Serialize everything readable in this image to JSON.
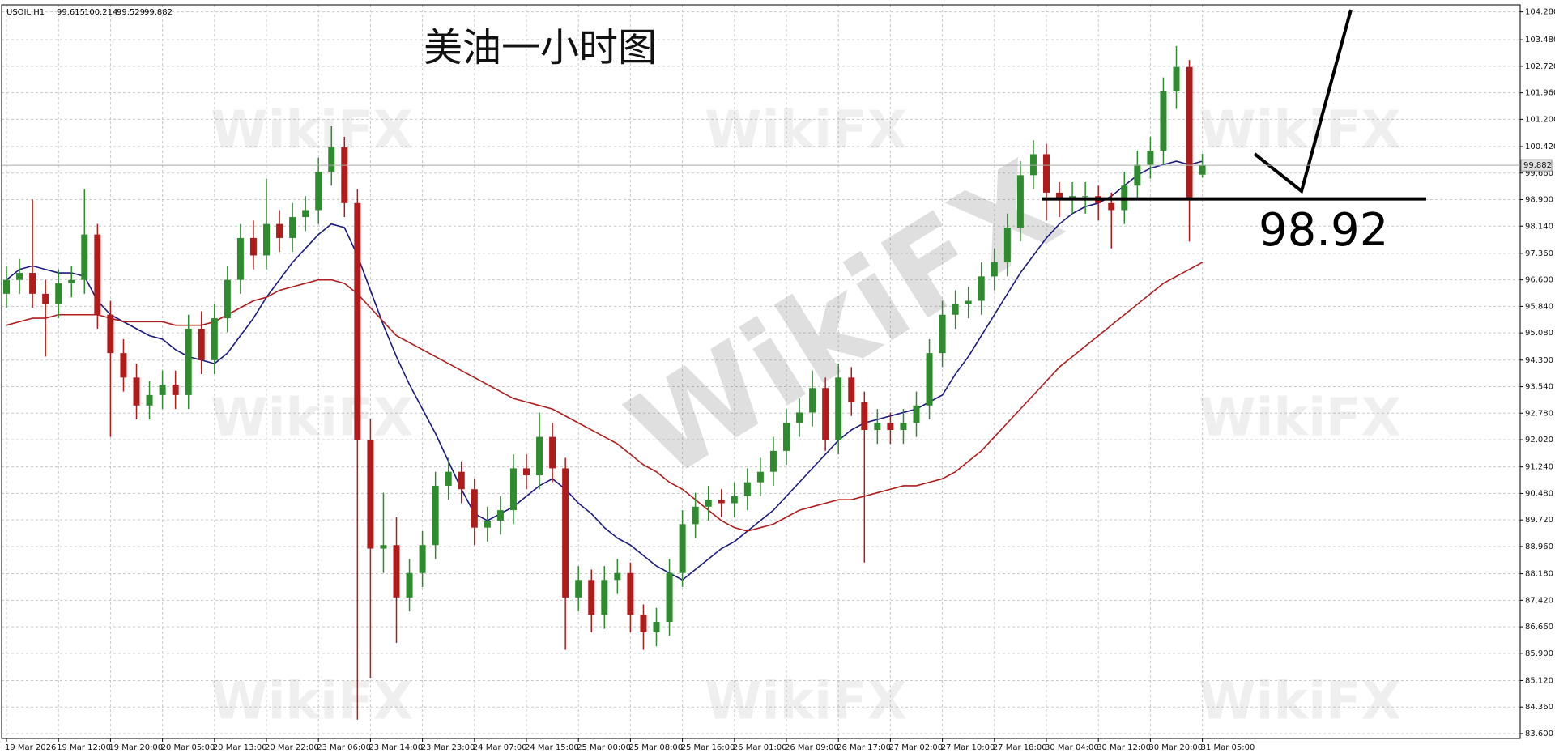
{
  "chart_data": {
    "type": "candlestick",
    "symbol": "USOIL,H1",
    "title": "美油一小时图",
    "watermark": "WikiFX",
    "level": 98.92,
    "grid": true,
    "up_color": "#2e8b2e",
    "down_color": "#b01c1c",
    "ylim": [
      83.46,
      104.48
    ],
    "yticks": [
      {
        "value": 83.6,
        "label": "83.600"
      },
      {
        "value": 84.36,
        "label": "84.360"
      },
      {
        "value": 85.12,
        "label": "85.120"
      },
      {
        "value": 85.9,
        "label": "85.900"
      },
      {
        "value": 86.66,
        "label": "86.660"
      },
      {
        "value": 87.42,
        "label": "87.420"
      },
      {
        "value": 88.18,
        "label": "88.180"
      },
      {
        "value": 88.96,
        "label": "88.960"
      },
      {
        "value": 89.72,
        "label": "89.720"
      },
      {
        "value": 90.48,
        "label": "90.480"
      },
      {
        "value": 91.24,
        "label": "91.240"
      },
      {
        "value": 92.02,
        "label": "92.020"
      },
      {
        "value": 92.78,
        "label": "92.780"
      },
      {
        "value": 93.54,
        "label": "93.540"
      },
      {
        "value": 94.3,
        "label": "94.300"
      },
      {
        "value": 95.08,
        "label": "95.080"
      },
      {
        "value": 95.84,
        "label": "95.840"
      },
      {
        "value": 96.6,
        "label": "96.600"
      },
      {
        "value": 97.36,
        "label": "97.360"
      },
      {
        "value": 98.14,
        "label": "98.140"
      },
      {
        "value": 98.9,
        "label": "98.900"
      },
      {
        "value": 99.66,
        "label": "99.660"
      },
      {
        "value": 100.42,
        "label": "100.420"
      },
      {
        "value": 101.2,
        "label": "101.200"
      },
      {
        "value": 101.96,
        "label": "101.960"
      },
      {
        "value": 102.72,
        "label": "102.720"
      },
      {
        "value": 103.48,
        "label": "103.480"
      },
      {
        "value": 104.28,
        "label": "104.280"
      }
    ],
    "categories": [
      "19 Mar 2026",
      null,
      null,
      null,
      "19 Mar 12:00",
      null,
      null,
      null,
      "19 Mar 20:00",
      null,
      null,
      null,
      "20 Mar 05:00",
      null,
      null,
      null,
      "20 Mar 13:00",
      null,
      null,
      null,
      "20 Mar 22:00",
      null,
      null,
      null,
      "23 Mar 06:00",
      null,
      null,
      null,
      "23 Mar 14:00",
      null,
      null,
      null,
      "23 Mar 23:00",
      null,
      null,
      null,
      "24 Mar 07:00",
      null,
      null,
      null,
      "24 Mar 15:00",
      null,
      null,
      null,
      "25 Mar 00:00",
      null,
      null,
      null,
      "25 Mar 08:00",
      null,
      null,
      null,
      "25 Mar 16:00",
      null,
      null,
      null,
      "26 Mar 01:00",
      null,
      null,
      null,
      "26 Mar 09:00",
      null,
      null,
      null,
      "26 Mar 17:00",
      null,
      null,
      null,
      "27 Mar 02:00",
      null,
      null,
      null,
      "27 Mar 10:00",
      null,
      null,
      null,
      "27 Mar 18:00",
      null,
      null,
      null,
      "30 Mar 04:00",
      null,
      null,
      null,
      "30 Mar 12:00",
      null,
      null,
      null,
      "30 Mar 20:00",
      null,
      null,
      null,
      "31 Mar 05:00"
    ],
    "open": [
      96.2,
      96.6,
      96.8,
      96.2,
      95.9,
      96.5,
      96.6,
      97.9,
      95.6,
      94.5,
      93.8,
      93.0,
      93.3,
      93.6,
      93.3,
      95.2,
      94.3,
      95.5,
      96.6,
      97.8,
      97.3,
      98.2,
      97.8,
      98.4,
      98.6,
      99.7,
      100.4,
      98.8,
      92.0,
      88.9,
      89.0,
      87.5,
      88.2,
      89.0,
      90.7,
      91.1,
      90.6,
      89.5,
      89.7,
      90.0,
      91.2,
      91.0,
      92.1,
      91.2,
      87.5,
      88.0,
      87.0,
      88.0,
      88.2,
      87.0,
      86.5,
      86.8,
      88.2,
      89.6,
      90.1,
      90.3,
      90.2,
      90.4,
      90.8,
      91.1,
      91.7,
      92.5,
      92.8,
      93.5,
      92.0,
      93.8,
      93.1,
      92.3,
      92.5,
      92.3,
      92.5,
      93.0,
      94.5,
      95.6,
      95.9,
      96.0,
      96.7,
      97.1,
      98.1,
      99.6,
      100.2,
      99.1,
      98.9,
      99.0,
      99.0,
      98.8,
      98.6,
      99.3,
      99.9,
      100.3,
      102.0,
      102.7,
      99.615
    ],
    "high": [
      97.0,
      97.2,
      98.9,
      96.6,
      96.9,
      97.0,
      99.2,
      98.2,
      96.0,
      94.9,
      94.2,
      93.7,
      94.0,
      94.0,
      95.6,
      95.7,
      95.9,
      97.0,
      98.2,
      98.3,
      99.5,
      98.6,
      98.8,
      99.0,
      100.1,
      101.0,
      100.7,
      99.2,
      92.6,
      90.5,
      89.8,
      88.6,
      89.4,
      91.1,
      91.5,
      91.4,
      90.9,
      90.1,
      90.4,
      91.6,
      91.6,
      92.8,
      92.5,
      91.5,
      88.4,
      88.3,
      88.4,
      88.6,
      88.5,
      87.3,
      87.2,
      88.6,
      90.0,
      90.5,
      90.7,
      90.6,
      90.8,
      91.2,
      91.5,
      92.1,
      92.9,
      93.2,
      94.0,
      93.8,
      94.2,
      94.1,
      93.4,
      92.9,
      92.8,
      92.9,
      93.4,
      94.9,
      96.0,
      96.3,
      96.4,
      97.1,
      97.5,
      98.5,
      100.0,
      100.6,
      100.5,
      99.4,
      99.4,
      99.4,
      99.3,
      99.1,
      99.7,
      100.3,
      100.7,
      102.4,
      103.3,
      102.9,
      100.214
    ],
    "low": [
      95.8,
      96.2,
      95.8,
      94.4,
      95.5,
      96.1,
      96.2,
      95.2,
      92.1,
      93.4,
      92.6,
      92.6,
      92.9,
      92.9,
      92.9,
      93.9,
      93.9,
      95.1,
      96.2,
      96.9,
      96.9,
      97.4,
      97.4,
      98.0,
      98.2,
      99.3,
      98.4,
      84.0,
      85.2,
      88.2,
      86.2,
      87.1,
      87.8,
      88.6,
      90.3,
      90.2,
      89.0,
      89.1,
      89.3,
      89.6,
      90.6,
      90.6,
      90.8,
      86.0,
      87.1,
      86.5,
      86.6,
      87.6,
      86.5,
      86.0,
      86.1,
      86.4,
      87.8,
      89.2,
      89.7,
      89.8,
      89.8,
      90.0,
      90.4,
      90.7,
      91.3,
      92.1,
      92.4,
      91.7,
      91.6,
      92.7,
      88.5,
      91.9,
      91.9,
      91.9,
      92.1,
      92.6,
      94.1,
      95.2,
      95.5,
      95.6,
      96.3,
      96.7,
      97.7,
      99.2,
      98.3,
      98.4,
      98.5,
      98.5,
      98.3,
      97.5,
      98.2,
      98.9,
      99.5,
      99.9,
      101.5,
      97.7,
      99.529
    ],
    "close": [
      96.6,
      96.8,
      96.2,
      95.9,
      96.5,
      96.6,
      97.9,
      95.6,
      94.5,
      93.8,
      93.0,
      93.3,
      93.6,
      93.3,
      95.2,
      94.3,
      95.5,
      96.6,
      97.8,
      97.3,
      98.2,
      97.8,
      98.4,
      98.6,
      99.7,
      100.4,
      98.8,
      92.0,
      88.9,
      89.0,
      87.5,
      88.2,
      89.0,
      90.7,
      91.1,
      90.6,
      89.5,
      89.7,
      90.0,
      91.2,
      91.0,
      92.1,
      91.2,
      87.5,
      88.0,
      87.0,
      88.0,
      88.2,
      87.0,
      86.5,
      86.8,
      88.2,
      89.6,
      90.1,
      90.3,
      90.2,
      90.4,
      90.8,
      91.1,
      91.7,
      92.5,
      92.8,
      93.5,
      92.0,
      93.8,
      93.1,
      92.3,
      92.5,
      92.3,
      92.5,
      93.0,
      94.5,
      95.6,
      95.9,
      96.0,
      96.7,
      97.1,
      98.1,
      99.6,
      100.2,
      99.1,
      98.9,
      99.0,
      99.0,
      98.8,
      98.6,
      99.3,
      99.9,
      100.3,
      102.0,
      102.7,
      98.9,
      99.882
    ],
    "lines": [
      {
        "color": "#1a1a80",
        "values": [
          96.6,
          96.9,
          97.0,
          96.9,
          96.8,
          96.8,
          96.7,
          96.0,
          95.6,
          95.4,
          95.2,
          95.0,
          94.9,
          94.6,
          94.4,
          94.3,
          94.2,
          94.5,
          95.0,
          95.5,
          96.1,
          96.6,
          97.1,
          97.5,
          97.9,
          98.2,
          98.1,
          97.3,
          96.3,
          95.3,
          94.4,
          93.6,
          92.9,
          92.2,
          91.4,
          90.6,
          89.9,
          89.7,
          89.9,
          90.1,
          90.4,
          90.7,
          90.9,
          90.6,
          90.2,
          89.9,
          89.5,
          89.2,
          89.0,
          88.7,
          88.4,
          88.2,
          88.0,
          88.3,
          88.6,
          88.9,
          89.1,
          89.4,
          89.7,
          90.0,
          90.4,
          90.8,
          91.2,
          91.6,
          92.0,
          92.3,
          92.5,
          92.6,
          92.7,
          92.8,
          92.9,
          93.1,
          93.3,
          93.9,
          94.4,
          95.0,
          95.6,
          96.2,
          96.8,
          97.3,
          97.8,
          98.2,
          98.5,
          98.7,
          98.8,
          99.0,
          99.3,
          99.6,
          99.8,
          99.9,
          100.0,
          99.9,
          100.0
        ]
      },
      {
        "color": "#b01c1c",
        "values": [
          95.3,
          95.4,
          95.5,
          95.5,
          95.6,
          95.6,
          95.6,
          95.6,
          95.5,
          95.4,
          95.4,
          95.4,
          95.4,
          95.3,
          95.3,
          95.3,
          95.4,
          95.6,
          95.8,
          96.0,
          96.1,
          96.3,
          96.4,
          96.5,
          96.6,
          96.6,
          96.5,
          96.2,
          95.8,
          95.4,
          95.0,
          94.8,
          94.6,
          94.4,
          94.2,
          94.0,
          93.8,
          93.6,
          93.4,
          93.2,
          93.1,
          93.0,
          92.9,
          92.7,
          92.5,
          92.3,
          92.1,
          91.9,
          91.6,
          91.3,
          91.1,
          90.8,
          90.6,
          90.3,
          90.0,
          89.7,
          89.5,
          89.4,
          89.5,
          89.6,
          89.8,
          90.0,
          90.1,
          90.2,
          90.3,
          90.3,
          90.4,
          90.5,
          90.6,
          90.7,
          90.7,
          90.8,
          90.9,
          91.1,
          91.4,
          91.7,
          92.1,
          92.5,
          92.9,
          93.3,
          93.7,
          94.1,
          94.4,
          94.7,
          95.0,
          95.3,
          95.6,
          95.9,
          96.2,
          96.5,
          96.7,
          96.9,
          97.1
        ]
      }
    ]
  }
}
